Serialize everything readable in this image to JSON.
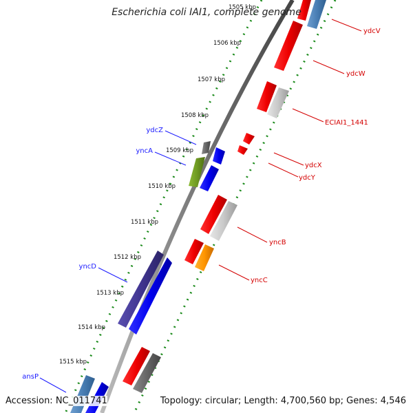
{
  "header": {
    "title": "Escherichia coli IAI1, complete genome"
  },
  "footer": {
    "accession": "Accession: NC_011741",
    "stats": "Topology: circular; Length: 4,700,560 bp; Genes: 4,546"
  },
  "ticks": [
    {
      "label": "1505 kbp"
    },
    {
      "label": "1506 kbp"
    },
    {
      "label": "1507 kbp"
    },
    {
      "label": "1508 kbp"
    },
    {
      "label": "1509 kbp"
    },
    {
      "label": "1510 kbp"
    },
    {
      "label": "1511 kbp"
    },
    {
      "label": "1512 kbp"
    },
    {
      "label": "1513 kbp"
    },
    {
      "label": "1514 kbp"
    },
    {
      "label": "1515 kbp"
    }
  ],
  "genes_forward": [
    {
      "name": "ydcZ"
    },
    {
      "name": "yncA"
    },
    {
      "name": "yncD"
    },
    {
      "name": "ansP"
    }
  ],
  "genes_reverse": [
    {
      "name": "ydcV"
    },
    {
      "name": "ydcW"
    },
    {
      "name": "ECIAI1_1441"
    },
    {
      "name": "ydcX"
    },
    {
      "name": "ydcY"
    },
    {
      "name": "yncB"
    },
    {
      "name": "yncC"
    }
  ],
  "colors": {
    "forward_label": "#1a1aff",
    "reverse_label": "#d40000",
    "backbone": "#777777",
    "dotted_track": "#1a8a1a"
  }
}
